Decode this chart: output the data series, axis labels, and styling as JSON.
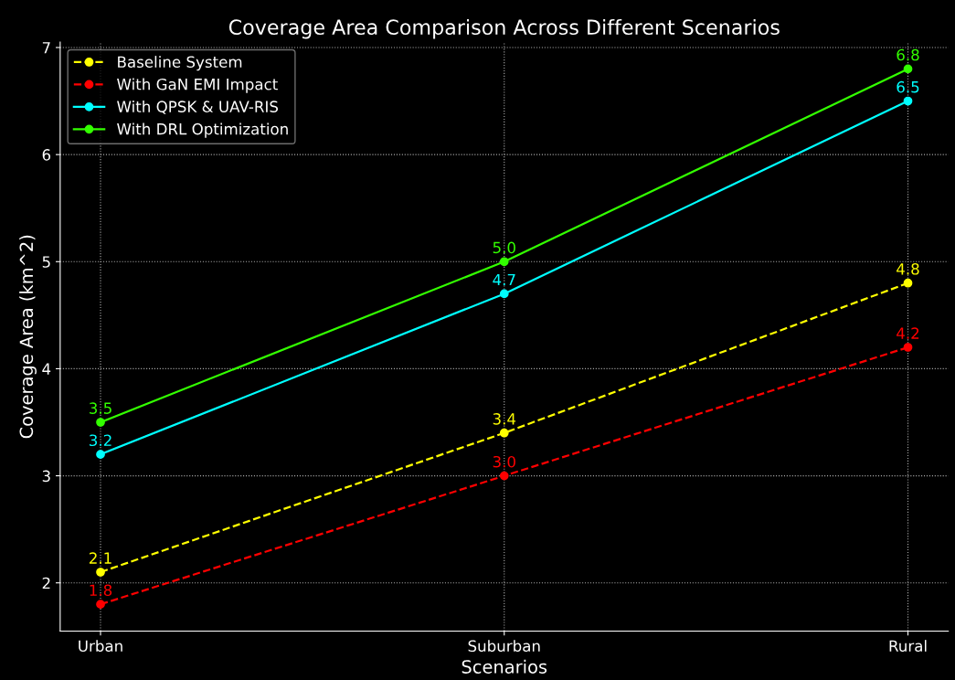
{
  "chart_data": {
    "type": "line",
    "title": "Coverage Area Comparison Across Different Scenarios",
    "xlabel": "Scenarios",
    "ylabel": "Coverage Area (km^2)",
    "categories": [
      "Urban",
      "Suburban",
      "Rural"
    ],
    "series": [
      {
        "name": "Baseline System",
        "color": "#ffff00",
        "values": [
          2.1,
          3.4,
          4.8
        ],
        "value_labels": [
          "2.1",
          "3.4",
          "4.8"
        ],
        "line_style": "dashed"
      },
      {
        "name": "With GaN EMI Impact",
        "color": "#ff0000",
        "values": [
          1.8,
          3.0,
          4.2
        ],
        "value_labels": [
          "1.8",
          "3.0",
          "4.2"
        ],
        "line_style": "dashed"
      },
      {
        "name": "With QPSK & UAV-RIS",
        "color": "#00ffff",
        "values": [
          3.2,
          4.7,
          6.5
        ],
        "value_labels": [
          "3.2",
          "4.7",
          "6.5"
        ],
        "line_style": "solid"
      },
      {
        "name": "With DRL Optimization",
        "color": "#33ff00",
        "values": [
          3.5,
          5.0,
          6.8
        ],
        "value_labels": [
          "3.5",
          "5.0",
          "6.8"
        ],
        "line_style": "solid"
      }
    ],
    "ylim": [
      1.55,
      7.05
    ],
    "yticks": [
      2,
      3,
      4,
      5,
      6,
      7
    ],
    "grid": true,
    "legend": "top left",
    "marker": "circle"
  }
}
